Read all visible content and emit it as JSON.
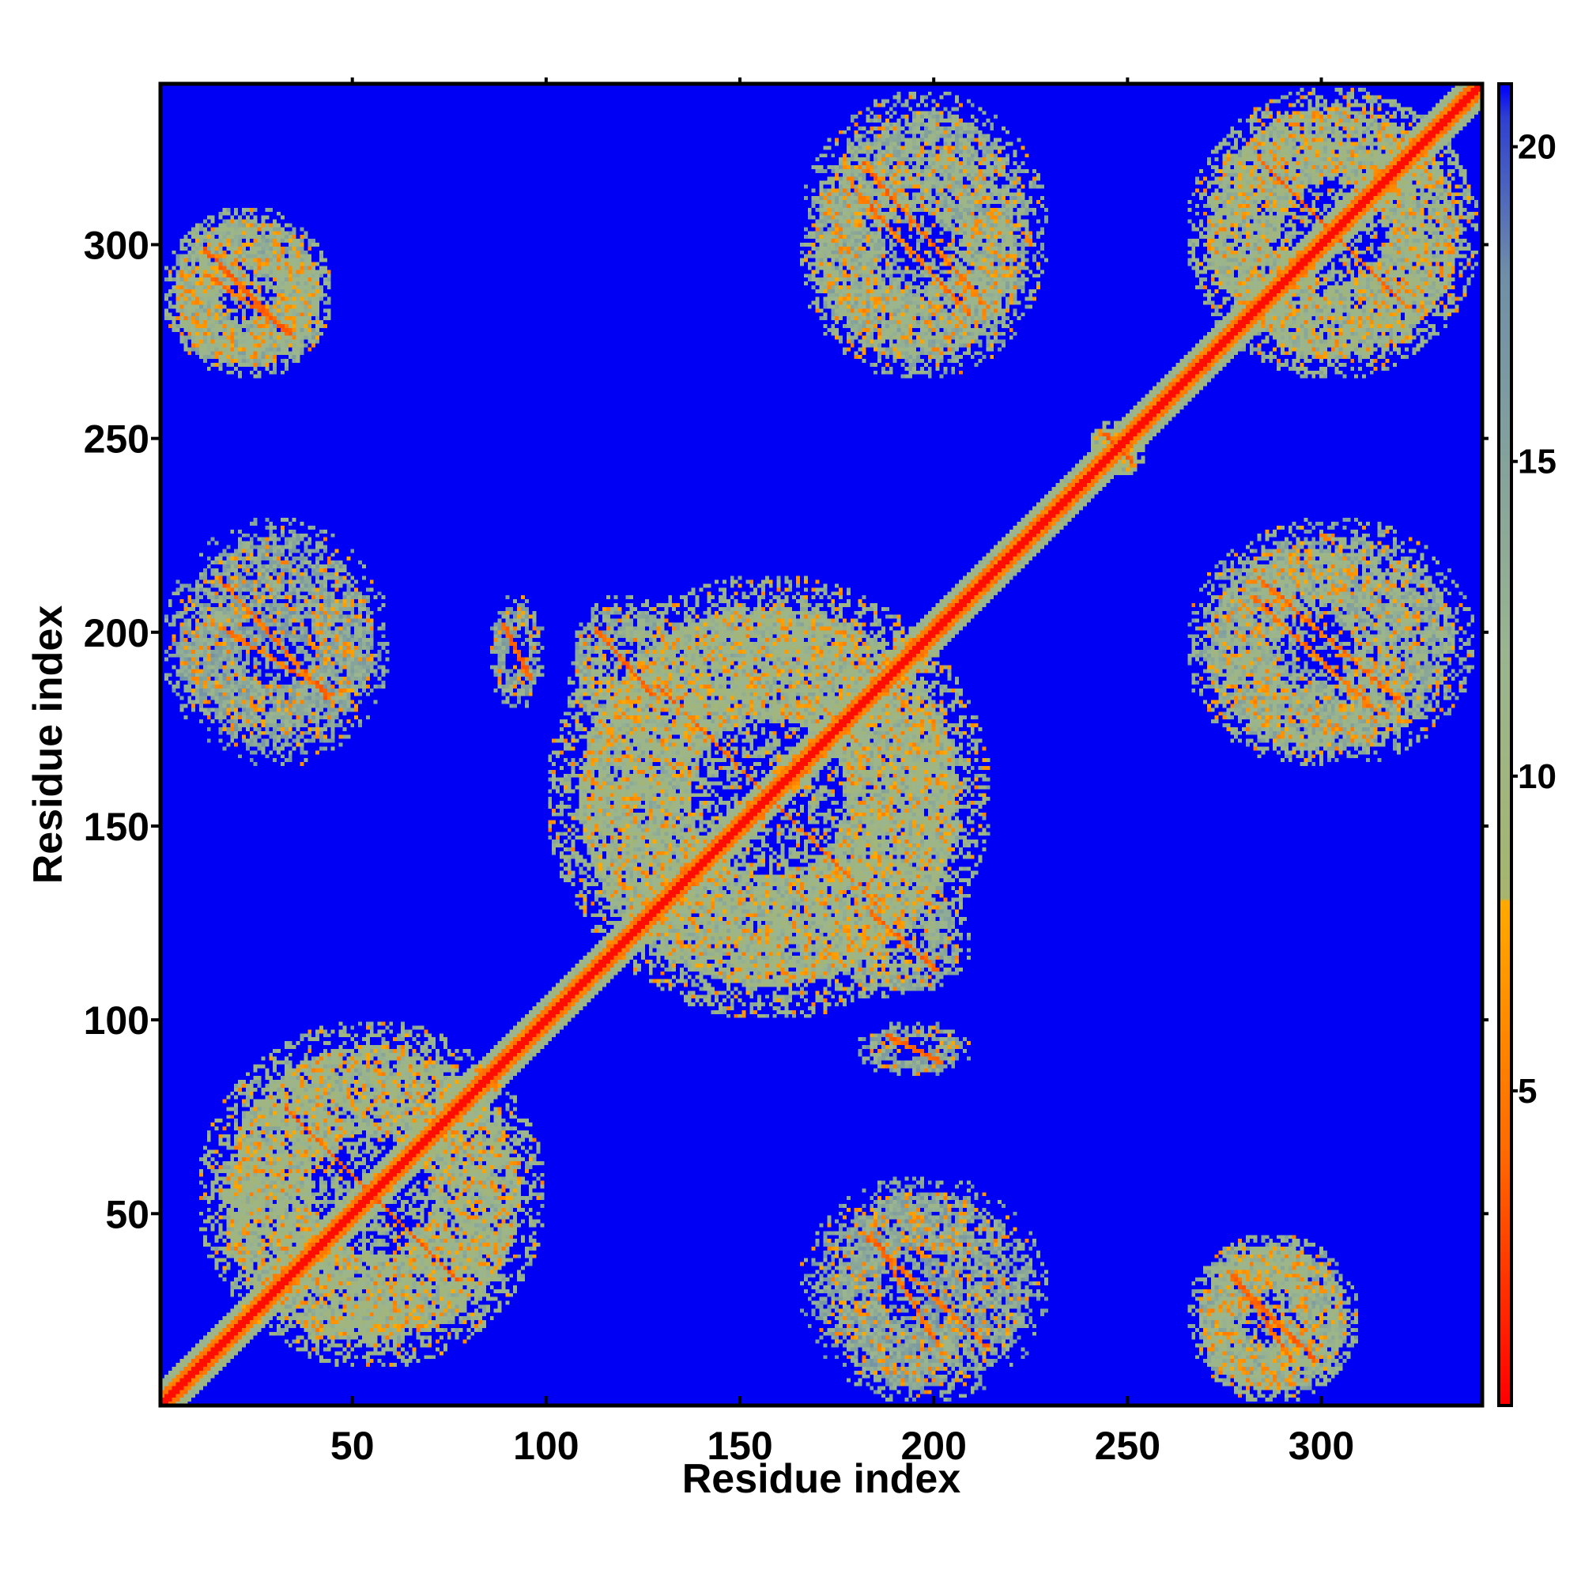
{
  "chart_data": {
    "type": "heatmap",
    "title": "",
    "xlabel": "Residue index",
    "ylabel": "Residue index",
    "xlim": [
      1,
      341
    ],
    "ylim": [
      1,
      341
    ],
    "x_ticks": [
      50,
      100,
      150,
      200,
      250,
      300
    ],
    "y_ticks": [
      50,
      100,
      150,
      200,
      250,
      300
    ],
    "colorbar": {
      "range": [
        0,
        21
      ],
      "ticks": [
        5,
        10,
        15,
        20
      ],
      "colors": [
        {
          "value": 0,
          "color": "#ff0000"
        },
        {
          "value": 4,
          "color": "#ff6a00"
        },
        {
          "value": 8,
          "color": "#ffaa00"
        },
        {
          "value": 8.01,
          "color": "#a6b56e"
        },
        {
          "value": 12,
          "color": "#9ab590"
        },
        {
          "value": 18,
          "color": "#6f8fa8"
        },
        {
          "value": 20.5,
          "color": "#3040d0"
        },
        {
          "value": 21,
          "color": "#0000ff"
        }
      ]
    },
    "background_color": "#0000f5",
    "diagonal_color": "#ff0000",
    "contact_blocks": [
      {
        "x": [
          10,
          100
        ],
        "y": [
          10,
          100
        ],
        "value": 9
      },
      {
        "x": [
          100,
          215
        ],
        "y": [
          100,
          215
        ],
        "value": 9
      },
      {
        "x": [
          265,
          341
        ],
        "y": [
          265,
          341
        ],
        "value": 9
      },
      {
        "x": [
          1,
          45
        ],
        "y": [
          265,
          310
        ],
        "value": 10
      },
      {
        "x": [
          1,
          45
        ],
        "y": [
          265,
          310
        ],
        "value": 10
      },
      {
        "x": [
          165,
          225
        ],
        "y": [
          265,
          330
        ],
        "value": 10
      },
      {
        "x": [
          265,
          340
        ],
        "y": [
          165,
          230
        ],
        "value": 10
      },
      {
        "x": [
          1,
          60
        ],
        "y": [
          165,
          230
        ],
        "value": 11
      },
      {
        "x": [
          175,
          210
        ],
        "y": [
          105,
          135
        ],
        "value": 10
      },
      {
        "x": [
          180,
          210
        ],
        "y": [
          85,
          100
        ],
        "value": 11
      },
      {
        "x": [
          270,
          300
        ],
        "y": [
          1,
          45
        ],
        "value": 10
      },
      {
        "x": [
          175,
          210
        ],
        "y": [
          1,
          60
        ],
        "value": 12
      },
      {
        "x": [
          240,
          255
        ],
        "y": [
          240,
          255
        ],
        "value": 9
      }
    ]
  }
}
